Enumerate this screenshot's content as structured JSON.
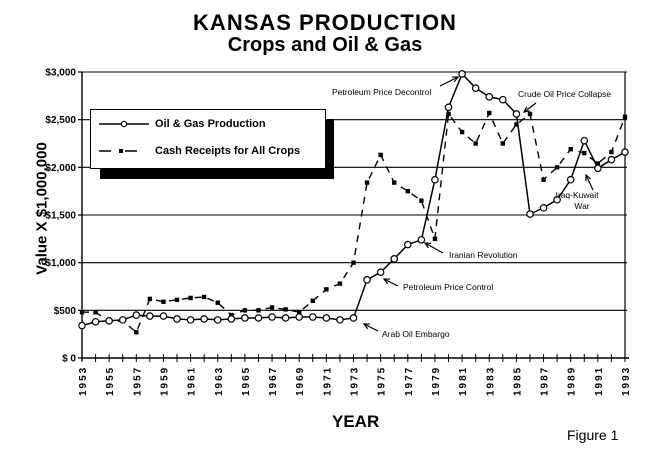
{
  "chart_data": {
    "type": "line",
    "title": "KANSAS PRODUCTION",
    "subtitle": "Crops and Oil & Gas",
    "xlabel": "YEAR",
    "ylabel": "Value X $1,000,000",
    "caption": "Figure 1",
    "ylim": [
      0,
      3000
    ],
    "xlim": [
      1953,
      1993
    ],
    "grid": "horizontal",
    "y_ticks": [
      "$ 0",
      "$500",
      "$1,000",
      "$1,500",
      "$2,000",
      "$2,500",
      "$3,000"
    ],
    "x_ticks": [
      "1953",
      "1955",
      "1957",
      "1959",
      "1961",
      "1963",
      "1965",
      "1967",
      "1969",
      "1971",
      "1973",
      "1975",
      "1977",
      "1979",
      "1981",
      "1983",
      "1985",
      "1987",
      "1989",
      "1991",
      "1993"
    ],
    "legend_position": "upper-left",
    "x": [
      1953,
      1954,
      1955,
      1956,
      1957,
      1958,
      1959,
      1960,
      1961,
      1962,
      1963,
      1964,
      1965,
      1966,
      1967,
      1968,
      1969,
      1970,
      1971,
      1972,
      1973,
      1974,
      1975,
      1976,
      1977,
      1978,
      1979,
      1980,
      1981,
      1982,
      1983,
      1984,
      1985,
      1986,
      1987,
      1988,
      1989,
      1990,
      1991,
      1992,
      1993
    ],
    "series": [
      {
        "name": "Oil & Gas Production",
        "style": "solid-line-open-circle",
        "values": [
          340,
          380,
          390,
          400,
          450,
          440,
          440,
          410,
          400,
          410,
          400,
          410,
          420,
          420,
          430,
          420,
          430,
          430,
          420,
          400,
          420,
          820,
          900,
          1040,
          1190,
          1240,
          1870,
          2630,
          2980,
          2830,
          2740,
          2710,
          2560,
          1510,
          1575,
          1660,
          1870,
          2280,
          1990,
          2080,
          2160
        ]
      },
      {
        "name": "Cash Receipts for All Crops",
        "style": "dashed-line-filled-square",
        "values": [
          480,
          480,
          380,
          390,
          270,
          620,
          590,
          610,
          630,
          640,
          580,
          450,
          500,
          500,
          530,
          510,
          480,
          600,
          720,
          780,
          1000,
          1840,
          2130,
          1840,
          1750,
          1650,
          1250,
          2560,
          2370,
          2250,
          2570,
          2250,
          2450,
          2560,
          1870,
          2000,
          2190,
          2150,
          2040,
          2160,
          2530
        ]
      }
    ],
    "annotations": [
      {
        "text": "Arab Oil Embargo",
        "year": 1973
      },
      {
        "text": "Petroleum Price Control",
        "year": 1975
      },
      {
        "text": "Iranian Revolution",
        "year": 1978
      },
      {
        "text": "Petroleum Price Decontrol",
        "year": 1981
      },
      {
        "text": "Crude Oil Price Collapse",
        "year": 1985
      },
      {
        "text": "Iraq-Kuwait War",
        "year": 1990
      }
    ]
  },
  "page": {
    "title": "KANSAS  PRODUCTION",
    "subtitle": "Crops and Oil & Gas",
    "ylabel": "Value X $1,000,000",
    "xlabel": "YEAR",
    "caption": "Figure 1"
  },
  "legend": {
    "items": [
      {
        "label": "Oil & Gas Production"
      },
      {
        "label": "Cash Receipts  for  All  Crops"
      }
    ]
  },
  "annotations": {
    "arab": "Arab Oil Embargo",
    "control": "Petroleum Price Control",
    "iran": "Iranian Revolution",
    "decontrol": "Petroleum Price Decontrol",
    "collapse": "Crude Oil Price Collapse",
    "iraq1": "Iraq-Kuwait",
    "iraq2": "War"
  }
}
